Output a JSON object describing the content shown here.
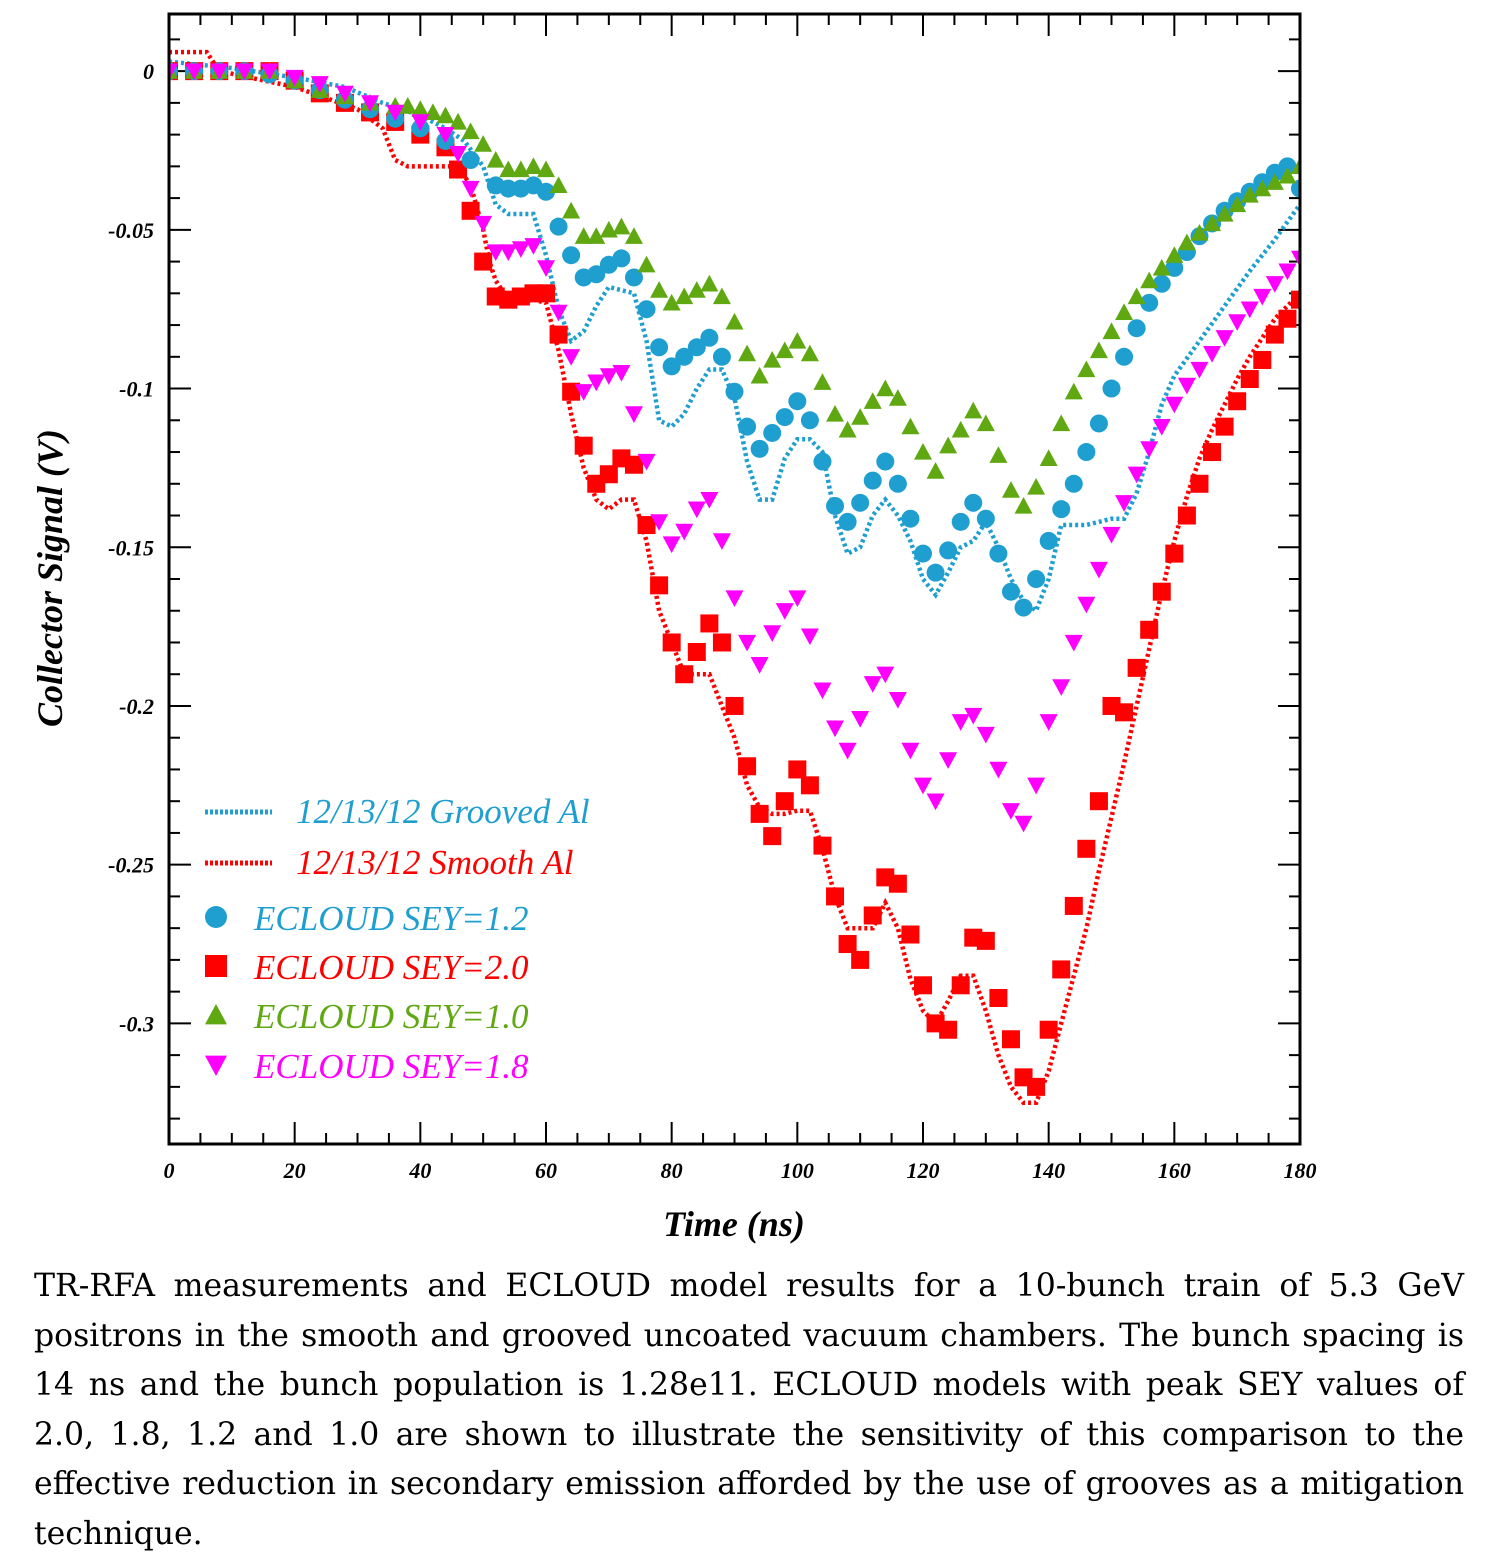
{
  "chart_data": {
    "type": "scatter",
    "title": "",
    "xlabel": "Time (ns)",
    "ylabel": "Collector Signal (V)",
    "xlim": [
      0,
      180
    ],
    "ylim": [
      -0.338,
      0.018
    ],
    "x_ticks": [
      0,
      20,
      40,
      60,
      80,
      100,
      120,
      140,
      160,
      180
    ],
    "x_tick_labels": [
      "0",
      "20",
      "40",
      "60",
      "80",
      "100",
      "120",
      "140",
      "160",
      "180"
    ],
    "y_ticks": [
      0,
      -0.05,
      -0.1,
      -0.15,
      -0.2,
      -0.25,
      -0.3
    ],
    "y_tick_labels": [
      "0",
      "-0.05",
      "-0.1",
      "-0.15",
      "-0.2",
      "-0.25",
      "-0.3"
    ],
    "grid": false,
    "legend_position": "bottom-left",
    "series": [
      {
        "name": "12/13/12 Grooved Al",
        "kind": "measurement",
        "style": "dotted-line",
        "color": "#1f9fd0",
        "x": [
          0,
          10,
          20,
          28,
          34,
          40,
          44,
          47,
          50,
          52,
          54,
          56,
          58,
          60,
          62,
          64,
          66,
          68,
          70,
          72,
          74,
          76,
          78,
          80,
          82,
          84,
          86,
          88,
          90,
          92,
          94,
          96,
          98,
          100,
          102,
          104,
          106,
          108,
          110,
          112,
          114,
          116,
          118,
          120,
          122,
          124,
          126,
          128,
          130,
          132,
          134,
          136,
          138,
          140,
          142,
          146,
          150,
          152,
          154,
          156,
          158,
          160,
          164,
          168,
          172,
          176,
          180
        ],
        "y": [
          0.003,
          0.001,
          -0.002,
          -0.005,
          -0.01,
          -0.014,
          -0.018,
          -0.022,
          -0.03,
          -0.042,
          -0.045,
          -0.045,
          -0.045,
          -0.058,
          -0.075,
          -0.085,
          -0.082,
          -0.074,
          -0.068,
          -0.069,
          -0.07,
          -0.085,
          -0.11,
          -0.112,
          -0.108,
          -0.1,
          -0.094,
          -0.094,
          -0.103,
          -0.123,
          -0.135,
          -0.135,
          -0.122,
          -0.116,
          -0.116,
          -0.12,
          -0.14,
          -0.152,
          -0.15,
          -0.14,
          -0.135,
          -0.14,
          -0.148,
          -0.16,
          -0.165,
          -0.158,
          -0.15,
          -0.148,
          -0.142,
          -0.15,
          -0.16,
          -0.167,
          -0.17,
          -0.16,
          -0.143,
          -0.143,
          -0.141,
          -0.141,
          -0.133,
          -0.12,
          -0.105,
          -0.096,
          -0.085,
          -0.074,
          -0.063,
          -0.053,
          -0.042
        ]
      },
      {
        "name": "12/13/12 Smooth Al",
        "kind": "measurement",
        "style": "dotted-line",
        "color": "#ff0000",
        "x": [
          0,
          6,
          8,
          20,
          30,
          34,
          36,
          38,
          42,
          46,
          48,
          50,
          51,
          52,
          54,
          56,
          58,
          60,
          62,
          64,
          66,
          68,
          70,
          72,
          74,
          76,
          78,
          80,
          82,
          84,
          86,
          88,
          90,
          92,
          94,
          96,
          98,
          100,
          102,
          104,
          106,
          108,
          110,
          112,
          114,
          116,
          118,
          120,
          122,
          124,
          126,
          128,
          130,
          132,
          134,
          136,
          138,
          140,
          142,
          144,
          146,
          148,
          150,
          152,
          154,
          156,
          158,
          160,
          162,
          164,
          166,
          168,
          170,
          172,
          174,
          176,
          178,
          180
        ],
        "y": [
          0.006,
          0.006,
          0.0,
          -0.005,
          -0.012,
          -0.018,
          -0.028,
          -0.03,
          -0.03,
          -0.03,
          -0.036,
          -0.05,
          -0.06,
          -0.066,
          -0.072,
          -0.073,
          -0.072,
          -0.073,
          -0.088,
          -0.108,
          -0.125,
          -0.135,
          -0.138,
          -0.135,
          -0.135,
          -0.148,
          -0.17,
          -0.18,
          -0.19,
          -0.19,
          -0.19,
          -0.2,
          -0.21,
          -0.225,
          -0.232,
          -0.234,
          -0.234,
          -0.233,
          -0.233,
          -0.245,
          -0.26,
          -0.27,
          -0.27,
          -0.27,
          -0.262,
          -0.27,
          -0.286,
          -0.296,
          -0.3,
          -0.293,
          -0.285,
          -0.285,
          -0.296,
          -0.31,
          -0.32,
          -0.325,
          -0.325,
          -0.315,
          -0.3,
          -0.285,
          -0.27,
          -0.252,
          -0.235,
          -0.218,
          -0.2,
          -0.182,
          -0.164,
          -0.148,
          -0.134,
          -0.122,
          -0.113,
          -0.105,
          -0.097,
          -0.09,
          -0.084,
          -0.078,
          -0.074,
          -0.07
        ]
      },
      {
        "name": "ECLOUD SEY=1.2",
        "kind": "model",
        "marker": "circle",
        "color": "#1f9fd0",
        "x": [
          0,
          4,
          8,
          12,
          16,
          20,
          24,
          28,
          32,
          36,
          40,
          44,
          48,
          52,
          54,
          56,
          58,
          60,
          62,
          64,
          66,
          68,
          70,
          72,
          74,
          76,
          78,
          80,
          82,
          84,
          86,
          88,
          90,
          92,
          94,
          96,
          98,
          100,
          102,
          104,
          106,
          108,
          110,
          112,
          114,
          116,
          118,
          120,
          122,
          124,
          126,
          128,
          130,
          132,
          134,
          136,
          138,
          140,
          142,
          144,
          146,
          148,
          150,
          152,
          154,
          156,
          158,
          160,
          162,
          164,
          166,
          168,
          170,
          172,
          174,
          176,
          178,
          180
        ],
        "y": [
          0.0,
          0.0,
          0.0,
          0.0,
          -0.001,
          -0.003,
          -0.006,
          -0.009,
          -0.012,
          -0.015,
          -0.018,
          -0.022,
          -0.028,
          -0.036,
          -0.037,
          -0.037,
          -0.036,
          -0.038,
          -0.049,
          -0.058,
          -0.065,
          -0.064,
          -0.061,
          -0.059,
          -0.065,
          -0.075,
          -0.087,
          -0.093,
          -0.09,
          -0.087,
          -0.084,
          -0.09,
          -0.101,
          -0.112,
          -0.119,
          -0.114,
          -0.109,
          -0.104,
          -0.11,
          -0.123,
          -0.137,
          -0.142,
          -0.136,
          -0.129,
          -0.123,
          -0.13,
          -0.141,
          -0.152,
          -0.158,
          -0.151,
          -0.142,
          -0.136,
          -0.141,
          -0.152,
          -0.164,
          -0.169,
          -0.16,
          -0.148,
          -0.138,
          -0.13,
          -0.12,
          -0.111,
          -0.1,
          -0.09,
          -0.081,
          -0.073,
          -0.067,
          -0.062,
          -0.057,
          -0.052,
          -0.048,
          -0.044,
          -0.041,
          -0.038,
          -0.035,
          -0.032,
          -0.03,
          -0.037
        ]
      },
      {
        "name": "ECLOUD SEY=2.0",
        "kind": "model",
        "marker": "square",
        "color": "#ff0000",
        "x": [
          0,
          4,
          8,
          12,
          16,
          20,
          24,
          28,
          32,
          36,
          40,
          44,
          46,
          48,
          50,
          52,
          54,
          56,
          58,
          60,
          62,
          64,
          66,
          68,
          70,
          72,
          74,
          76,
          78,
          80,
          82,
          84,
          86,
          88,
          90,
          92,
          94,
          96,
          98,
          100,
          102,
          104,
          106,
          108,
          110,
          112,
          114,
          116,
          118,
          120,
          122,
          124,
          126,
          128,
          130,
          132,
          134,
          136,
          138,
          140,
          142,
          144,
          146,
          148,
          150,
          152,
          154,
          156,
          158,
          160,
          162,
          164,
          166,
          168,
          170,
          172,
          174,
          176,
          178,
          180
        ],
        "y": [
          0.0,
          0.0,
          0.0,
          0.0,
          0.0,
          -0.003,
          -0.007,
          -0.01,
          -0.013,
          -0.016,
          -0.02,
          -0.024,
          -0.031,
          -0.044,
          -0.06,
          -0.071,
          -0.072,
          -0.071,
          -0.07,
          -0.07,
          -0.083,
          -0.101,
          -0.118,
          -0.13,
          -0.127,
          -0.122,
          -0.124,
          -0.143,
          -0.162,
          -0.18,
          -0.19,
          -0.183,
          -0.174,
          -0.18,
          -0.2,
          -0.219,
          -0.234,
          -0.241,
          -0.23,
          -0.22,
          -0.225,
          -0.244,
          -0.26,
          -0.275,
          -0.28,
          -0.266,
          -0.254,
          -0.256,
          -0.272,
          -0.288,
          -0.3,
          -0.302,
          -0.288,
          -0.273,
          -0.274,
          -0.292,
          -0.305,
          -0.317,
          -0.32,
          -0.302,
          -0.283,
          -0.263,
          -0.245,
          -0.23,
          -0.2,
          -0.202,
          -0.188,
          -0.176,
          -0.164,
          -0.152,
          -0.14,
          -0.13,
          -0.12,
          -0.112,
          -0.104,
          -0.097,
          -0.091,
          -0.083,
          -0.078,
          -0.072
        ]
      },
      {
        "name": "ECLOUD SEY=1.0",
        "kind": "model",
        "marker": "triangle-up",
        "color": "#5fa812",
        "x": [
          0,
          4,
          8,
          12,
          16,
          20,
          24,
          28,
          32,
          36,
          38,
          40,
          42,
          44,
          46,
          48,
          50,
          52,
          54,
          56,
          58,
          60,
          62,
          64,
          66,
          68,
          70,
          72,
          74,
          76,
          78,
          80,
          82,
          84,
          86,
          88,
          90,
          92,
          94,
          96,
          98,
          100,
          102,
          104,
          106,
          108,
          110,
          112,
          114,
          116,
          118,
          120,
          122,
          124,
          126,
          128,
          130,
          132,
          134,
          136,
          138,
          140,
          142,
          144,
          146,
          148,
          150,
          152,
          154,
          156,
          158,
          160,
          162,
          164,
          166,
          168,
          170,
          172,
          174,
          176,
          178,
          180
        ],
        "y": [
          0.0,
          0.0,
          0.0,
          0.0,
          0.0,
          -0.003,
          -0.006,
          -0.008,
          -0.01,
          -0.011,
          -0.011,
          -0.012,
          -0.013,
          -0.014,
          -0.016,
          -0.019,
          -0.023,
          -0.028,
          -0.031,
          -0.031,
          -0.03,
          -0.031,
          -0.036,
          -0.044,
          -0.052,
          -0.052,
          -0.05,
          -0.049,
          -0.052,
          -0.061,
          -0.069,
          -0.073,
          -0.071,
          -0.069,
          -0.067,
          -0.071,
          -0.079,
          -0.089,
          -0.096,
          -0.091,
          -0.088,
          -0.085,
          -0.089,
          -0.098,
          -0.108,
          -0.113,
          -0.109,
          -0.104,
          -0.1,
          -0.103,
          -0.112,
          -0.12,
          -0.126,
          -0.118,
          -0.113,
          -0.107,
          -0.111,
          -0.121,
          -0.132,
          -0.137,
          -0.131,
          -0.122,
          -0.111,
          -0.101,
          -0.094,
          -0.088,
          -0.082,
          -0.076,
          -0.071,
          -0.066,
          -0.062,
          -0.058,
          -0.054,
          -0.051,
          -0.048,
          -0.045,
          -0.042,
          -0.039,
          -0.037,
          -0.035,
          -0.033,
          -0.03
        ]
      },
      {
        "name": "ECLOUD SEY=1.8",
        "kind": "model",
        "marker": "triangle-down",
        "color": "#ff00ff",
        "x": [
          0,
          4,
          8,
          12,
          16,
          20,
          24,
          28,
          32,
          36,
          40,
          44,
          46,
          48,
          50,
          52,
          54,
          56,
          58,
          60,
          62,
          64,
          66,
          68,
          70,
          72,
          74,
          76,
          78,
          80,
          82,
          84,
          86,
          88,
          90,
          92,
          94,
          96,
          98,
          100,
          102,
          104,
          106,
          108,
          110,
          112,
          114,
          116,
          118,
          120,
          122,
          124,
          126,
          128,
          130,
          132,
          134,
          136,
          138,
          140,
          142,
          144,
          146,
          148,
          150,
          152,
          154,
          156,
          158,
          160,
          162,
          164,
          166,
          168,
          170,
          172,
          174,
          176,
          178,
          180
        ],
        "y": [
          0.0,
          0.0,
          0.0,
          0.0,
          0.0,
          -0.002,
          -0.004,
          -0.007,
          -0.01,
          -0.013,
          -0.016,
          -0.02,
          -0.026,
          -0.037,
          -0.048,
          -0.057,
          -0.057,
          -0.056,
          -0.055,
          -0.062,
          -0.076,
          -0.09,
          -0.101,
          -0.098,
          -0.096,
          -0.095,
          -0.108,
          -0.123,
          -0.142,
          -0.149,
          -0.145,
          -0.138,
          -0.135,
          -0.148,
          -0.166,
          -0.18,
          -0.187,
          -0.177,
          -0.17,
          -0.166,
          -0.178,
          -0.195,
          -0.207,
          -0.214,
          -0.204,
          -0.193,
          -0.19,
          -0.198,
          -0.214,
          -0.225,
          -0.23,
          -0.217,
          -0.205,
          -0.203,
          -0.209,
          -0.22,
          -0.233,
          -0.237,
          -0.225,
          -0.205,
          -0.194,
          -0.18,
          -0.168,
          -0.157,
          -0.146,
          -0.136,
          -0.127,
          -0.119,
          -0.112,
          -0.105,
          -0.099,
          -0.094,
          -0.089,
          -0.084,
          -0.079,
          -0.075,
          -0.071,
          -0.067,
          -0.063,
          -0.059
        ]
      }
    ]
  },
  "caption": "TR-RFA measurements and ECLOUD model results for a 10-bunch train of 5.3 GeV positrons in the smooth and grooved uncoated vacuum chambers. The bunch spacing is 14 ns and the bunch population is 1.28e11. ECLOUD models with peak SEY values of 2.0, 1.8, 1.2 and 1.0 are shown to illustrate the sensitivity of this comparison to the effective reduction in secondary emission afforded by the use of grooves as a mitigation technique."
}
